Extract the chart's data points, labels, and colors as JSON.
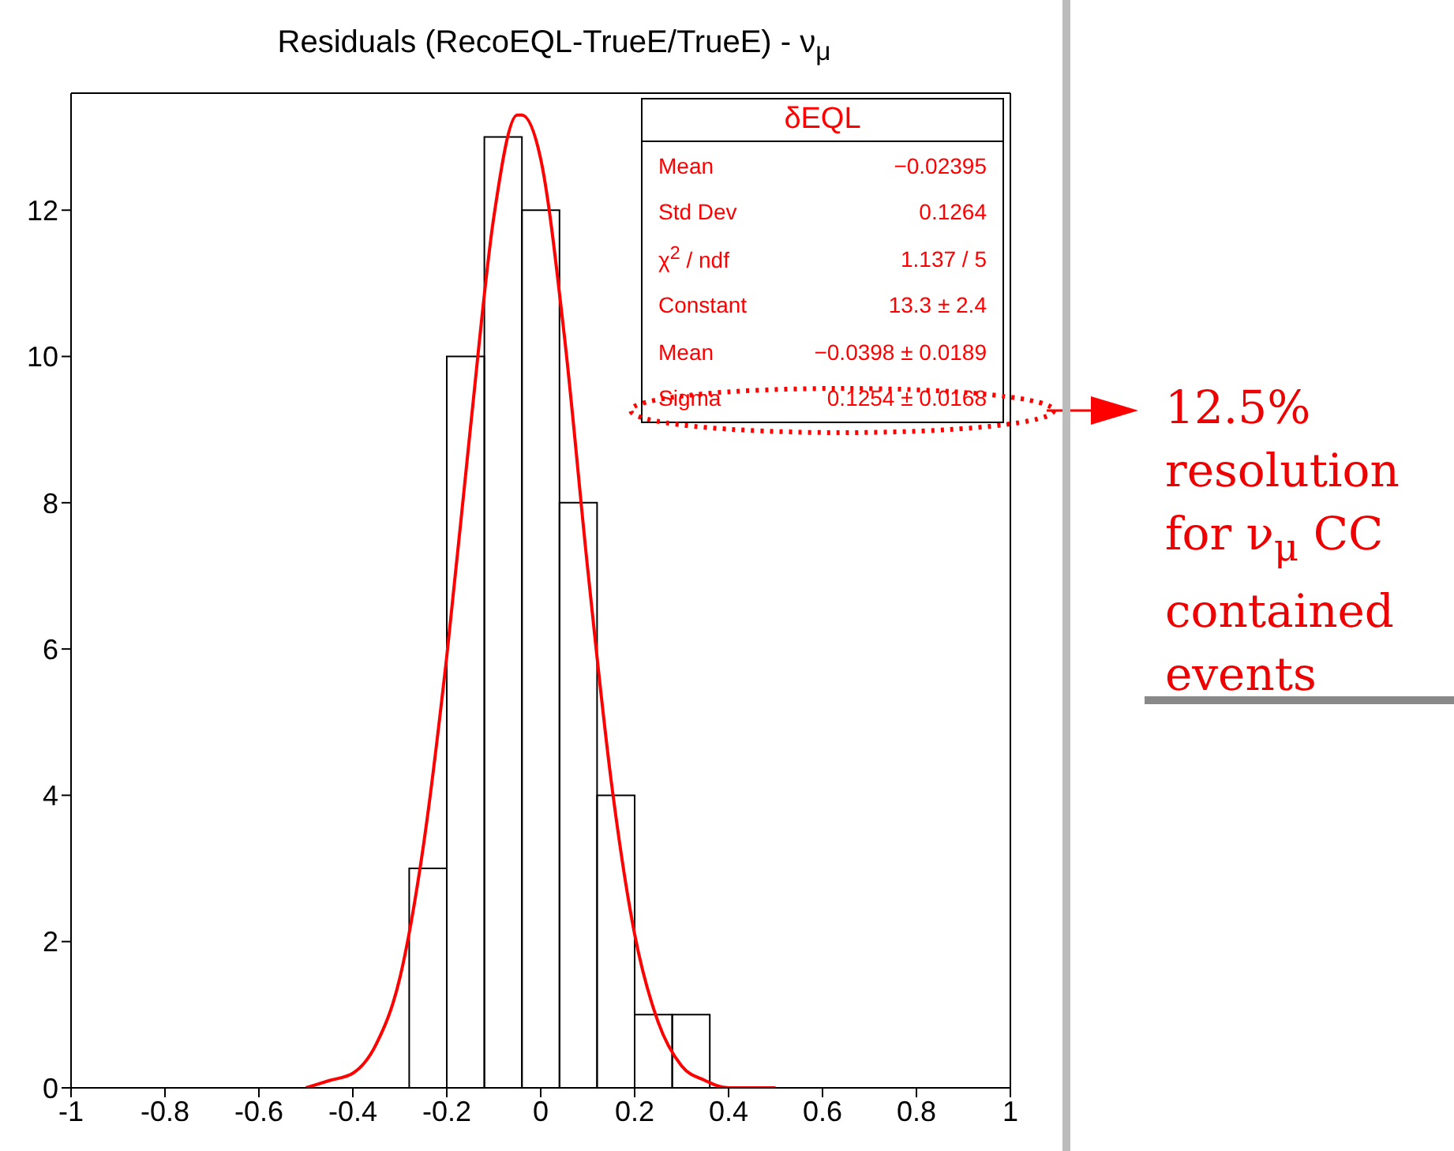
{
  "chart_data": {
    "type": "histogram",
    "title": "Residuals (RecoEQL-TrueE/TrueE) - ν$_{μ}$",
    "bins": [
      -0.28,
      -0.2,
      -0.12,
      -0.04,
      0.04,
      0.12,
      0.2,
      0.28,
      0.36
    ],
    "values": [
      3,
      10,
      13,
      12,
      8,
      4,
      1,
      1
    ],
    "color": "#000000",
    "series": [
      {
        "type": "line",
        "color": "#ff0000",
        "x": [
          -0.5,
          -0.45,
          -0.4,
          -0.35,
          -0.3,
          -0.25,
          -0.2,
          -0.15,
          -0.1,
          -0.05,
          -0.04,
          0,
          0.05,
          0.1,
          0.15,
          0.2,
          0.25,
          0.3,
          0.35,
          0.4,
          0.45,
          0.5
        ],
        "values": [
          0.0,
          0.1,
          0.2,
          0.6,
          1.5,
          3.3,
          5.9,
          9.0,
          11.9,
          13.3,
          13.3,
          12.7,
          10.3,
          7.1,
          4.2,
          2.1,
          0.9,
          0.3,
          0.1,
          0.0,
          0.0,
          0.0
        ]
      }
    ],
    "xlim": [
      -1,
      1
    ],
    "xticks": [
      -1,
      -0.8,
      -0.6,
      -0.4,
      -0.2,
      0,
      0.2,
      0.4,
      0.6,
      0.8,
      1
    ],
    "ylim": [
      0,
      13.6
    ],
    "yticks": [
      0,
      2,
      4,
      6,
      8,
      10,
      12
    ],
    "grid": false,
    "annotations": [
      "δEQL",
      "Mean",
      "−0.02395",
      "Std Dev",
      "0.1264",
      "χ$^{2}$ / ndf",
      "1.137 / 5",
      "Constant",
      "13.3 ± 2.4",
      "Mean",
      "−0.0398 ± 0.0189",
      "Sigma",
      "0.1254 ± 0.0168",
      "12.5% resolution for ν$_{μ}$ CC contained events"
    ]
  }
}
